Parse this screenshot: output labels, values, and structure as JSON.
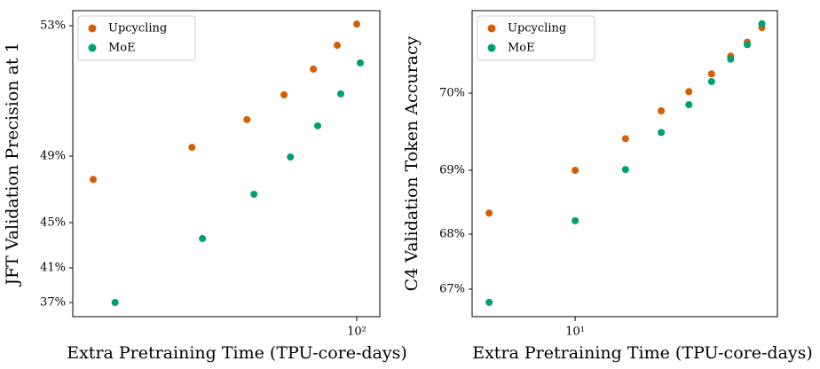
{
  "chart_data": [
    {
      "type": "scatter",
      "xlabel": "Extra Pretraining Time (TPU-core-days)",
      "ylabel": "JFT Validation Precision at 1",
      "xscale": "log",
      "xlim": [
        18.7,
        114.6
      ],
      "xticks": [
        {
          "value": 100,
          "label": "10²"
        }
      ],
      "ylim": [
        35.36,
        53.46
      ],
      "yticks": [
        {
          "value": 37,
          "label": "37%"
        },
        {
          "value": 41,
          "label": "41%"
        },
        {
          "value": 45,
          "label": "45%"
        },
        {
          "value": 49,
          "label": "49%"
        },
        {
          "value": 53,
          "label": "53%"
        }
      ],
      "legend": "upper left",
      "series": [
        {
          "name": "Upcycling",
          "color": "#d55e00",
          "x": [
            21.1,
            37.8,
            52.3,
            65.1,
            77.4,
            89.1,
            100
          ],
          "values": [
            47.6,
            49.27,
            50.12,
            50.88,
            51.67,
            52.4,
            53.05
          ]
        },
        {
          "name": "MoE",
          "color": "#009e73",
          "x": [
            24.0,
            40.2,
            54.5,
            67.6,
            79.4,
            91.0,
            102.1
          ],
          "values": [
            37.0,
            43.59,
            46.71,
            48.95,
            49.93,
            50.91,
            51.86
          ]
        }
      ]
    },
    {
      "type": "scatter",
      "xlabel": "Extra Pretraining Time (TPU-core-days)",
      "ylabel": "C4 Validation Token Accuracy",
      "xscale": "log",
      "xlim": [
        4.36,
        51.0
      ],
      "xticks": [
        {
          "value": 10,
          "label": "10¹"
        }
      ],
      "ylim": [
        66.5,
        71.07
      ],
      "yticks": [
        {
          "value": 67,
          "label": "67%"
        },
        {
          "value": 68,
          "label": "68%"
        },
        {
          "value": 69,
          "label": "69%"
        },
        {
          "value": 70,
          "label": "70%"
        }
      ],
      "legend": "upper left",
      "series": [
        {
          "name": "Upcycling",
          "color": "#d55e00",
          "x": [
            5,
            10,
            15,
            20,
            25,
            30,
            35,
            40,
            45
          ],
          "values": [
            68.33,
            69.0,
            69.41,
            69.77,
            70.02,
            70.25,
            70.48,
            70.66,
            70.85
          ]
        },
        {
          "name": "MoE",
          "color": "#009e73",
          "x": [
            5,
            10,
            15,
            20,
            25,
            30,
            35,
            40,
            45
          ],
          "values": [
            66.76,
            68.21,
            69.01,
            69.49,
            69.85,
            70.15,
            70.44,
            70.63,
            70.9
          ]
        }
      ]
    }
  ]
}
